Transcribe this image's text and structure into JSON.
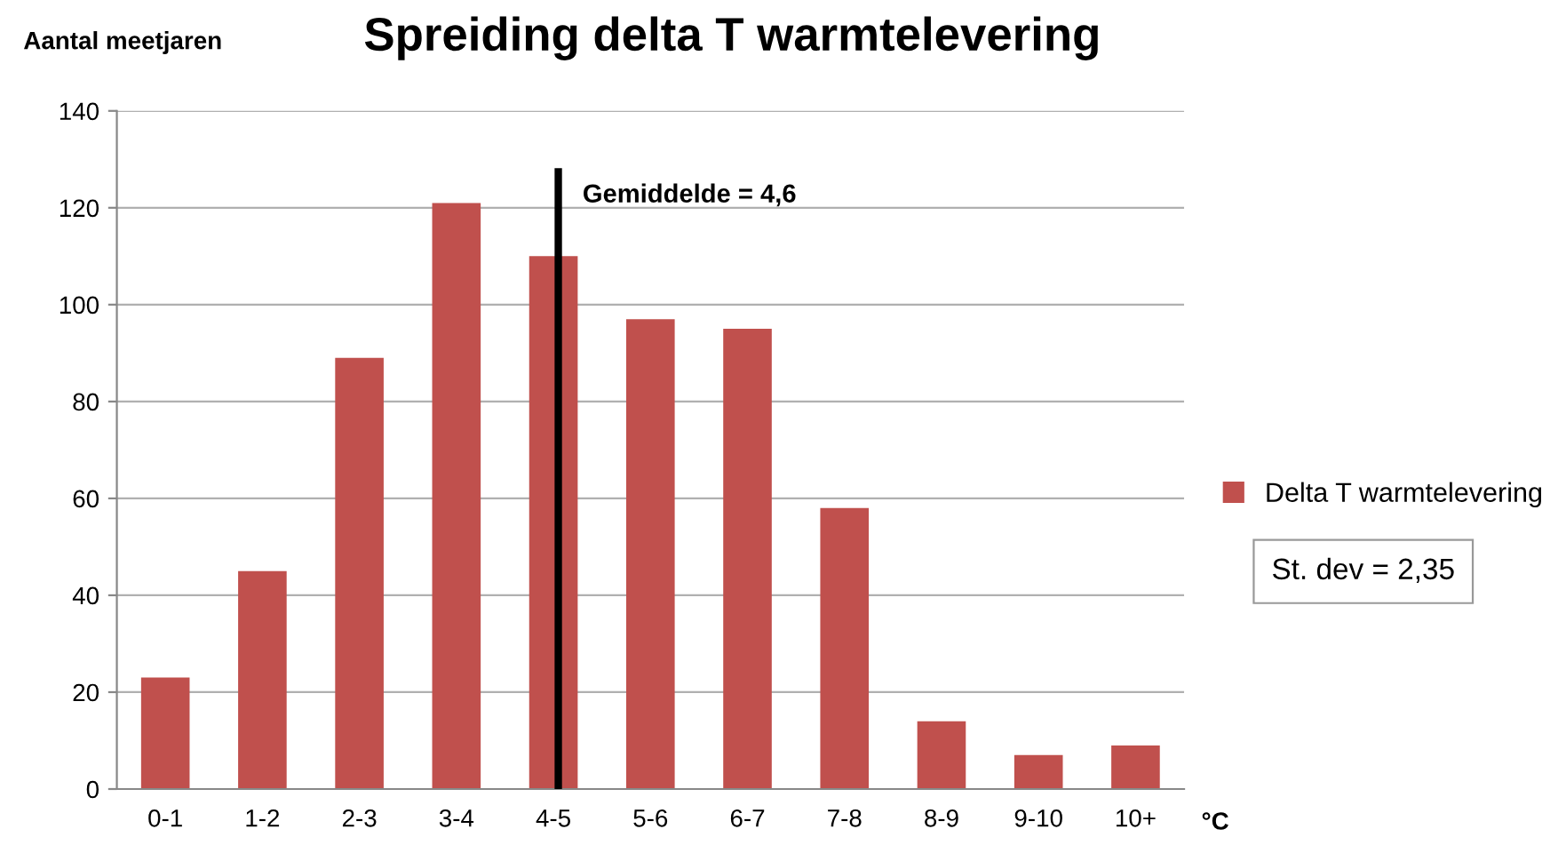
{
  "chart_data": {
    "type": "bar",
    "title": "Spreiding delta T warmtelevering",
    "ylabel": "Aantal meetjaren",
    "xlabel": "°C",
    "categories": [
      "0-1",
      "1-2",
      "2-3",
      "3-4",
      "4-5",
      "5-6",
      "6-7",
      "7-8",
      "8-9",
      "9-10",
      "10+"
    ],
    "series": [
      {
        "name": "Delta T warmtelevering",
        "color": "#c0504d",
        "values": [
          23,
          45,
          89,
          121,
          110,
          97,
          95,
          58,
          14,
          7,
          9
        ]
      }
    ],
    "ylim": [
      0,
      140
    ],
    "yticks": [
      0,
      20,
      40,
      60,
      80,
      100,
      120,
      140
    ],
    "grid": "y",
    "legend": "right",
    "ref_lines": [
      {
        "axis": "x",
        "value": "4-5",
        "label": "Gemiddelde = 4,6",
        "color": "#000000"
      }
    ],
    "annotations": [
      "St. dev = 2,35"
    ]
  }
}
